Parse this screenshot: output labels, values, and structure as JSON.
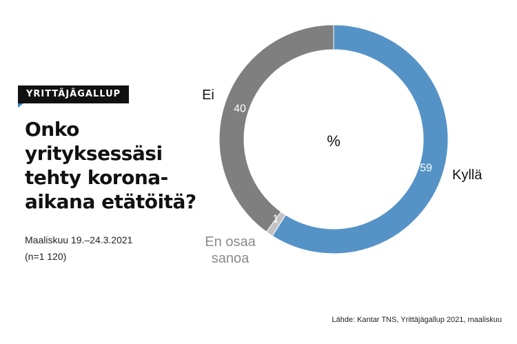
{
  "badge": "YRITTÄJÄGALLUP",
  "question": "Onko yrityksessäsi tehty korona-aikana etätöitä?",
  "question_lines": [
    "Onko",
    "yrityksessäsi",
    "tehty korona-",
    "aikana etätöitä?"
  ],
  "survey_period": "Maaliskuu 19.–24.3.2021",
  "sample_size": "(n=1 120)",
  "source": "Lähde: Kantar TNS, Yrittäjägallup 2021, maaliskuu",
  "colors": {
    "kylla": "#5593c7",
    "en_osaa_sanoa": "#c3c3c3",
    "ei": "#7f7f7f",
    "badge_accent": "#2f86c8"
  },
  "chart_data": {
    "type": "pie",
    "variant": "donut",
    "unit_label": "%",
    "slices": [
      {
        "name": "Kyllä",
        "label_lines": [
          "Kyllä"
        ],
        "value": 59,
        "color": "#5593c7"
      },
      {
        "name": "En osaa sanoa",
        "label_lines": [
          "En osaa",
          "sanoa"
        ],
        "value": 1,
        "color": "#c3c3c3"
      },
      {
        "name": "Ei",
        "label_lines": [
          "Ei"
        ],
        "value": 40,
        "color": "#7f7f7f"
      }
    ]
  }
}
